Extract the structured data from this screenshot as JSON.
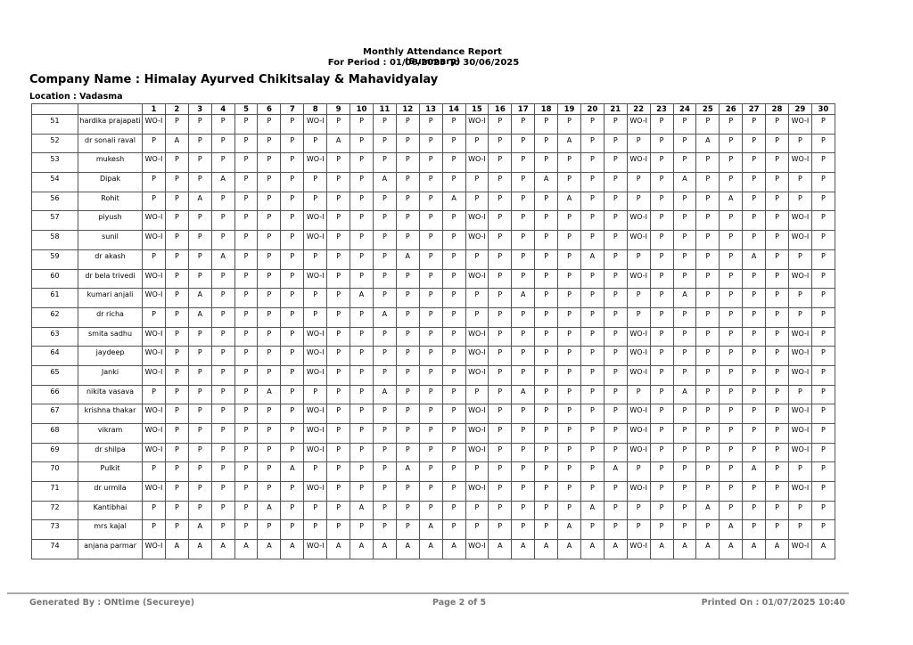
{
  "header": {
    "title": "Monthly Attendance Report (Summary)",
    "period": "For Period  : 01/06/2025 To 30/06/2025",
    "company": "Company Name :  Himalay Ayurved Chikitsalay & Mahavidyalay",
    "location": "Location  : Vadasma"
  },
  "table": {
    "columns": [
      "1",
      "2",
      "3",
      "4",
      "5",
      "6",
      "7",
      "8",
      "9",
      "10",
      "11",
      "12",
      "13",
      "14",
      "15",
      "16",
      "17",
      "18",
      "19",
      "20",
      "21",
      "22",
      "23",
      "24",
      "25",
      "26",
      "27",
      "28",
      "29",
      "30"
    ],
    "rows": [
      [
        "51",
        "hardika prajapati",
        [
          "WO-I",
          "P",
          "P",
          "P",
          "P",
          "P",
          "P",
          "WO-I",
          "P",
          "P",
          "P",
          "P",
          "P",
          "P",
          "WO-I",
          "P",
          "P",
          "P",
          "P",
          "P",
          "P",
          "WO-I",
          "P",
          "P",
          "P",
          "P",
          "P",
          "P",
          "WO-I",
          "P"
        ]
      ],
      [
        "52",
        "dr sonali raval",
        [
          "P",
          "A",
          "P",
          "P",
          "P",
          "P",
          "P",
          "P",
          "A",
          "P",
          "P",
          "P",
          "P",
          "P",
          "P",
          "P",
          "P",
          "P",
          "A",
          "P",
          "P",
          "P",
          "P",
          "P",
          "A",
          "P",
          "P",
          "P",
          "P",
          "P"
        ]
      ],
      [
        "53",
        "mukesh",
        [
          "WO-I",
          "P",
          "P",
          "P",
          "P",
          "P",
          "P",
          "WO-I",
          "P",
          "P",
          "P",
          "P",
          "P",
          "P",
          "WO-I",
          "P",
          "P",
          "P",
          "P",
          "P",
          "P",
          "WO-I",
          "P",
          "P",
          "P",
          "P",
          "P",
          "P",
          "WO-I",
          "P"
        ]
      ],
      [
        "54",
        "Dipak",
        [
          "P",
          "P",
          "P",
          "A",
          "P",
          "P",
          "P",
          "P",
          "P",
          "P",
          "A",
          "P",
          "P",
          "P",
          "P",
          "P",
          "P",
          "A",
          "P",
          "P",
          "P",
          "P",
          "P",
          "A",
          "P",
          "P",
          "P",
          "P",
          "P",
          "P"
        ]
      ],
      [
        "56",
        "Rohit",
        [
          "P",
          "P",
          "A",
          "P",
          "P",
          "P",
          "P",
          "P",
          "P",
          "P",
          "P",
          "P",
          "P",
          "A",
          "P",
          "P",
          "P",
          "P",
          "A",
          "P",
          "P",
          "P",
          "P",
          "P",
          "P",
          "A",
          "P",
          "P",
          "P",
          "P"
        ]
      ],
      [
        "57",
        "piyush",
        [
          "WO-I",
          "P",
          "P",
          "P",
          "P",
          "P",
          "P",
          "WO-I",
          "P",
          "P",
          "P",
          "P",
          "P",
          "P",
          "WO-I",
          "P",
          "P",
          "P",
          "P",
          "P",
          "P",
          "WO-I",
          "P",
          "P",
          "P",
          "P",
          "P",
          "P",
          "WO-I",
          "P"
        ]
      ],
      [
        "58",
        "sunil",
        [
          "WO-I",
          "P",
          "P",
          "P",
          "P",
          "P",
          "P",
          "WO-I",
          "P",
          "P",
          "P",
          "P",
          "P",
          "P",
          "WO-I",
          "P",
          "P",
          "P",
          "P",
          "P",
          "P",
          "WO-I",
          "P",
          "P",
          "P",
          "P",
          "P",
          "P",
          "WO-I",
          "P"
        ]
      ],
      [
        "59",
        "dr akash",
        [
          "P",
          "P",
          "P",
          "A",
          "P",
          "P",
          "P",
          "P",
          "P",
          "P",
          "P",
          "A",
          "P",
          "P",
          "P",
          "P",
          "P",
          "P",
          "P",
          "A",
          "P",
          "P",
          "P",
          "P",
          "P",
          "P",
          "A",
          "P",
          "P",
          "P"
        ]
      ],
      [
        "60",
        "dr bela trivedi",
        [
          "WO-I",
          "P",
          "P",
          "P",
          "P",
          "P",
          "P",
          "WO-I",
          "P",
          "P",
          "P",
          "P",
          "P",
          "P",
          "WO-I",
          "P",
          "P",
          "P",
          "P",
          "P",
          "P",
          "WO-I",
          "P",
          "P",
          "P",
          "P",
          "P",
          "P",
          "WO-I",
          "P"
        ]
      ],
      [
        "61",
        "kumari anjali",
        [
          "WO-I",
          "P",
          "A",
          "P",
          "P",
          "P",
          "P",
          "P",
          "P",
          "A",
          "P",
          "P",
          "P",
          "P",
          "P",
          "P",
          "A",
          "P",
          "P",
          "P",
          "P",
          "P",
          "P",
          "A",
          "P",
          "P",
          "P",
          "P",
          "P",
          "P"
        ]
      ],
      [
        "62",
        "dr richa",
        [
          "P",
          "P",
          "A",
          "P",
          "P",
          "P",
          "P",
          "P",
          "P",
          "P",
          "A",
          "P",
          "P",
          "P",
          "P",
          "P",
          "P",
          "P",
          "P",
          "P",
          "P",
          "P",
          "P",
          "P",
          "P",
          "P",
          "P",
          "P",
          "P",
          "P"
        ]
      ],
      [
        "63",
        "smita sadhu",
        [
          "WO-I",
          "P",
          "P",
          "P",
          "P",
          "P",
          "P",
          "WO-I",
          "P",
          "P",
          "P",
          "P",
          "P",
          "P",
          "WO-I",
          "P",
          "P",
          "P",
          "P",
          "P",
          "P",
          "WO-I",
          "P",
          "P",
          "P",
          "P",
          "P",
          "P",
          "WO-I",
          "P"
        ]
      ],
      [
        "64",
        "jaydeep",
        [
          "WO-I",
          "P",
          "P",
          "P",
          "P",
          "P",
          "P",
          "WO-I",
          "P",
          "P",
          "P",
          "P",
          "P",
          "P",
          "WO-I",
          "P",
          "P",
          "P",
          "P",
          "P",
          "P",
          "WO-I",
          "P",
          "P",
          "P",
          "P",
          "P",
          "P",
          "WO-I",
          "P"
        ]
      ],
      [
        "65",
        "Janki",
        [
          "WO-I",
          "P",
          "P",
          "P",
          "P",
          "P",
          "P",
          "WO-I",
          "P",
          "P",
          "P",
          "P",
          "P",
          "P",
          "WO-I",
          "P",
          "P",
          "P",
          "P",
          "P",
          "P",
          "WO-I",
          "P",
          "P",
          "P",
          "P",
          "P",
          "P",
          "WO-I",
          "P"
        ]
      ],
      [
        "66",
        "nikita vasava",
        [
          "P",
          "P",
          "P",
          "P",
          "P",
          "A",
          "P",
          "P",
          "P",
          "P",
          "A",
          "P",
          "P",
          "P",
          "P",
          "P",
          "A",
          "P",
          "P",
          "P",
          "P",
          "P",
          "P",
          "A",
          "P",
          "P",
          "P",
          "P",
          "P",
          "P"
        ]
      ],
      [
        "67",
        "krishna thakar",
        [
          "WO-I",
          "P",
          "P",
          "P",
          "P",
          "P",
          "P",
          "WO-I",
          "P",
          "P",
          "P",
          "P",
          "P",
          "P",
          "WO-I",
          "P",
          "P",
          "P",
          "P",
          "P",
          "P",
          "WO-I",
          "P",
          "P",
          "P",
          "P",
          "P",
          "P",
          "WO-I",
          "P"
        ]
      ],
      [
        "68",
        "vikram",
        [
          "WO-I",
          "P",
          "P",
          "P",
          "P",
          "P",
          "P",
          "WO-I",
          "P",
          "P",
          "P",
          "P",
          "P",
          "P",
          "WO-I",
          "P",
          "P",
          "P",
          "P",
          "P",
          "P",
          "WO-I",
          "P",
          "P",
          "P",
          "P",
          "P",
          "P",
          "WO-I",
          "P"
        ]
      ],
      [
        "69",
        "dr shilpa",
        [
          "WO-I",
          "P",
          "P",
          "P",
          "P",
          "P",
          "P",
          "WO-I",
          "P",
          "P",
          "P",
          "P",
          "P",
          "P",
          "WO-I",
          "P",
          "P",
          "P",
          "P",
          "P",
          "P",
          "WO-I",
          "P",
          "P",
          "P",
          "P",
          "P",
          "P",
          "WO-I",
          "P"
        ]
      ],
      [
        "70",
        "Pulkit",
        [
          "P",
          "P",
          "P",
          "P",
          "P",
          "P",
          "A",
          "P",
          "P",
          "P",
          "P",
          "A",
          "P",
          "P",
          "P",
          "P",
          "P",
          "P",
          "P",
          "P",
          "A",
          "P",
          "P",
          "P",
          "P",
          "P",
          "A",
          "P",
          "P",
          "P"
        ]
      ],
      [
        "71",
        "dr urmila",
        [
          "WO-I",
          "P",
          "P",
          "P",
          "P",
          "P",
          "P",
          "WO-I",
          "P",
          "P",
          "P",
          "P",
          "P",
          "P",
          "WO-I",
          "P",
          "P",
          "P",
          "P",
          "P",
          "P",
          "WO-I",
          "P",
          "P",
          "P",
          "P",
          "P",
          "P",
          "WO-I",
          "P"
        ]
      ],
      [
        "72",
        "Kantibhai",
        [
          "P",
          "P",
          "P",
          "P",
          "P",
          "A",
          "P",
          "P",
          "P",
          "A",
          "P",
          "P",
          "P",
          "P",
          "P",
          "P",
          "P",
          "P",
          "P",
          "A",
          "P",
          "P",
          "P",
          "P",
          "A",
          "P",
          "P",
          "P",
          "P",
          "P"
        ]
      ],
      [
        "73",
        "mrs kajal",
        [
          "P",
          "P",
          "A",
          "P",
          "P",
          "P",
          "P",
          "P",
          "P",
          "P",
          "P",
          "P",
          "A",
          "P",
          "P",
          "P",
          "P",
          "P",
          "A",
          "P",
          "P",
          "P",
          "P",
          "P",
          "P",
          "A",
          "P",
          "P",
          "P",
          "P"
        ]
      ],
      [
        "74",
        "anjana parmar",
        [
          "WO-I",
          "A",
          "A",
          "A",
          "A",
          "A",
          "A",
          "WO-I",
          "A",
          "A",
          "A",
          "A",
          "A",
          "A",
          "WO-I",
          "A",
          "A",
          "A",
          "A",
          "A",
          "A",
          "WO-I",
          "A",
          "A",
          "A",
          "A",
          "A",
          "A",
          "WO-I",
          "A"
        ]
      ]
    ]
  },
  "footer": {
    "generated": "Generated By : ONtime (Secureye)",
    "page": "Page 2 of 5",
    "printed": "Printed On : 01/07/2025 10:40"
  }
}
